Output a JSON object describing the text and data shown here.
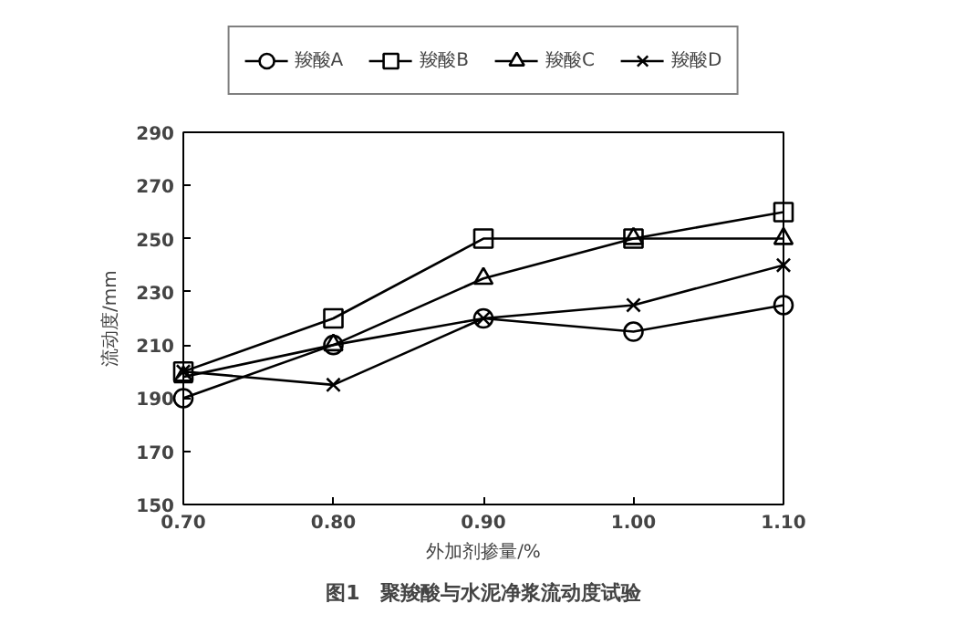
{
  "chart_data": {
    "type": "line",
    "title": "图1　聚羧酸与水泥净浆流动度试验",
    "xlabel": "外加剂掺量/%",
    "ylabel": "流动度/mm",
    "x": [
      0.7,
      0.8,
      0.9,
      1.0,
      1.1
    ],
    "xlim": [
      0.7,
      1.1
    ],
    "xticks": [
      {
        "value": 0.7,
        "label": "0.70"
      },
      {
        "value": 0.8,
        "label": "0.80"
      },
      {
        "value": 0.9,
        "label": "0.90"
      },
      {
        "value": 1.0,
        "label": "1.00"
      },
      {
        "value": 1.1,
        "label": "1.10"
      }
    ],
    "ylim": [
      150,
      290
    ],
    "yticks": [
      150,
      170,
      190,
      210,
      230,
      250,
      270,
      290
    ],
    "grid": false,
    "legend": "top",
    "line_style": "solid",
    "series": [
      {
        "name": "羧酸A",
        "color": "#000000",
        "marker": "circle",
        "values": [
          190,
          210,
          220,
          215,
          225
        ]
      },
      {
        "name": "羧酸B",
        "color": "#000000",
        "marker": "square",
        "values": [
          200,
          220,
          250,
          250,
          260
        ]
      },
      {
        "name": "羧酸C",
        "color": "#000000",
        "marker": "triangle",
        "values": [
          198,
          210,
          235,
          250,
          250
        ]
      },
      {
        "name": "羧酸D",
        "color": "#000000",
        "marker": "cross",
        "values": [
          200,
          195,
          220,
          225,
          240
        ]
      }
    ]
  }
}
